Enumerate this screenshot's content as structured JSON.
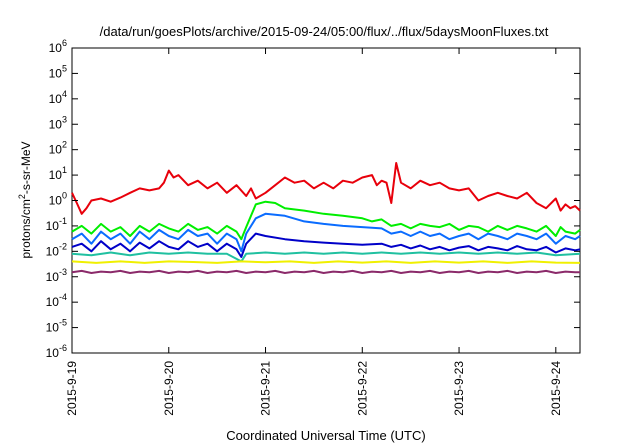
{
  "chart_data": {
    "type": "line",
    "title": "/data/run/goesPlots/archive/2015-09-24/05:00/flux/../flux/5daysMoonFluxes.txt",
    "xlabel": "Coordinated Universal Time (UTC)",
    "ylabel_parts": {
      "pre": "protons/cm",
      "sup": "2",
      "post": "-s-sr-MeV"
    },
    "x_unit": "days since 2015-09-19 00:00 UTC",
    "xlim": [
      0,
      5.25
    ],
    "ylim_log10": [
      -6,
      6
    ],
    "y_scale": "log",
    "grid": false,
    "x_ticks": [
      {
        "value": 0,
        "label": "2015-9-19"
      },
      {
        "value": 1,
        "label": "2015-9-20"
      },
      {
        "value": 2,
        "label": "2015-9-21"
      },
      {
        "value": 3,
        "label": "2015-9-22"
      },
      {
        "value": 4,
        "label": "2015-9-23"
      },
      {
        "value": 5,
        "label": "2015-9-24"
      }
    ],
    "y_ticks": [
      {
        "exp": -6,
        "label": "10",
        "sup": "-6"
      },
      {
        "exp": -5,
        "label": "10",
        "sup": "-5"
      },
      {
        "exp": -4,
        "label": "10",
        "sup": "-4"
      },
      {
        "exp": -3,
        "label": "10",
        "sup": "-3"
      },
      {
        "exp": -2,
        "label": "10",
        "sup": "-2"
      },
      {
        "exp": -1,
        "label": "10",
        "sup": "-1"
      },
      {
        "exp": 0,
        "label": "10",
        "sup": "0"
      },
      {
        "exp": 1,
        "label": "10",
        "sup": "1"
      },
      {
        "exp": 2,
        "label": "10",
        "sup": "2"
      },
      {
        "exp": 3,
        "label": "10",
        "sup": "3"
      },
      {
        "exp": 4,
        "label": "10",
        "sup": "4"
      },
      {
        "exp": 5,
        "label": "10",
        "sup": "5"
      },
      {
        "exp": 6,
        "label": "10",
        "sup": "6"
      }
    ],
    "series": [
      {
        "color": "#e8000b",
        "x": [
          0,
          0.05,
          0.1,
          0.15,
          0.2,
          0.3,
          0.4,
          0.5,
          0.6,
          0.7,
          0.8,
          0.9,
          0.95,
          1.0,
          1.05,
          1.1,
          1.2,
          1.3,
          1.4,
          1.5,
          1.6,
          1.7,
          1.8,
          1.85,
          1.9,
          2.0,
          2.1,
          2.2,
          2.3,
          2.4,
          2.5,
          2.6,
          2.7,
          2.8,
          2.9,
          3.0,
          3.1,
          3.15,
          3.2,
          3.25,
          3.3,
          3.35,
          3.4,
          3.5,
          3.6,
          3.7,
          3.8,
          3.9,
          4.0,
          4.1,
          4.2,
          4.3,
          4.4,
          4.5,
          4.6,
          4.7,
          4.8,
          4.9,
          5.0,
          5.05,
          5.1,
          5.15,
          5.2,
          5.25
        ],
        "y": [
          2,
          0.8,
          0.3,
          0.5,
          1,
          1.2,
          0.9,
          1.3,
          2,
          3,
          2.5,
          3,
          5,
          15,
          8,
          10,
          4,
          6,
          3,
          5,
          2,
          4,
          1.5,
          3,
          1.2,
          2,
          4,
          8,
          5,
          6,
          3,
          5,
          3,
          6,
          5,
          8,
          10,
          4,
          6,
          5,
          0.8,
          30,
          5,
          3,
          6,
          4,
          5,
          3,
          2.5,
          3,
          1,
          1.5,
          2,
          1.5,
          1.2,
          2,
          0.8,
          0.5,
          1.2,
          0.4,
          0.7,
          0.5,
          0.6,
          0.4
        ]
      },
      {
        "color": "#00ee00",
        "x": [
          0,
          0.1,
          0.2,
          0.3,
          0.4,
          0.5,
          0.6,
          0.7,
          0.8,
          0.9,
          1.0,
          1.1,
          1.2,
          1.3,
          1.4,
          1.5,
          1.6,
          1.7,
          1.75,
          1.8,
          1.9,
          2.0,
          2.1,
          2.2,
          2.4,
          2.6,
          2.8,
          3.0,
          3.1,
          3.2,
          3.3,
          3.4,
          3.5,
          3.6,
          3.7,
          3.8,
          3.9,
          4.0,
          4.1,
          4.2,
          4.3,
          4.4,
          4.5,
          4.6,
          4.7,
          4.8,
          4.9,
          5.0,
          5.05,
          5.1,
          5.2,
          5.25
        ],
        "y": [
          0.06,
          0.1,
          0.05,
          0.12,
          0.06,
          0.09,
          0.04,
          0.1,
          0.06,
          0.12,
          0.08,
          0.06,
          0.12,
          0.07,
          0.09,
          0.05,
          0.1,
          0.06,
          0.03,
          0.09,
          0.7,
          0.9,
          0.8,
          0.5,
          0.4,
          0.3,
          0.25,
          0.2,
          0.15,
          0.18,
          0.1,
          0.12,
          0.08,
          0.12,
          0.1,
          0.09,
          0.12,
          0.07,
          0.1,
          0.09,
          0.06,
          0.1,
          0.07,
          0.1,
          0.08,
          0.06,
          0.1,
          0.04,
          0.09,
          0.06,
          0.05,
          0.07
        ]
      },
      {
        "color": "#0a6cff",
        "x": [
          0,
          0.1,
          0.2,
          0.3,
          0.4,
          0.5,
          0.6,
          0.7,
          0.8,
          0.9,
          1.0,
          1.1,
          1.2,
          1.3,
          1.4,
          1.5,
          1.6,
          1.7,
          1.75,
          1.8,
          1.9,
          2.0,
          2.2,
          2.4,
          2.6,
          2.8,
          3.0,
          3.2,
          3.3,
          3.4,
          3.5,
          3.6,
          3.7,
          3.8,
          3.9,
          4.0,
          4.1,
          4.2,
          4.3,
          4.4,
          4.5,
          4.6,
          4.7,
          4.8,
          4.9,
          5.0,
          5.1,
          5.2,
          5.25
        ],
        "y": [
          0.03,
          0.05,
          0.02,
          0.06,
          0.03,
          0.05,
          0.02,
          0.06,
          0.03,
          0.07,
          0.04,
          0.03,
          0.07,
          0.04,
          0.05,
          0.02,
          0.05,
          0.03,
          0.01,
          0.05,
          0.2,
          0.3,
          0.25,
          0.15,
          0.12,
          0.1,
          0.09,
          0.08,
          0.05,
          0.06,
          0.04,
          0.06,
          0.04,
          0.05,
          0.03,
          0.04,
          0.05,
          0.03,
          0.05,
          0.04,
          0.03,
          0.05,
          0.04,
          0.03,
          0.05,
          0.02,
          0.04,
          0.03,
          0.04
        ]
      },
      {
        "color": "#0000c8",
        "x": [
          0,
          0.1,
          0.2,
          0.3,
          0.4,
          0.5,
          0.6,
          0.7,
          0.8,
          0.9,
          1.0,
          1.1,
          1.2,
          1.3,
          1.4,
          1.5,
          1.6,
          1.7,
          1.75,
          1.8,
          1.9,
          2.0,
          2.2,
          2.4,
          2.6,
          2.8,
          3.0,
          3.2,
          3.3,
          3.4,
          3.5,
          3.6,
          3.7,
          3.8,
          3.9,
          4.0,
          4.1,
          4.2,
          4.3,
          4.4,
          4.5,
          4.6,
          4.7,
          4.8,
          4.9,
          5.0,
          5.1,
          5.2,
          5.25
        ],
        "y": [
          0.015,
          0.02,
          0.01,
          0.025,
          0.012,
          0.02,
          0.01,
          0.022,
          0.013,
          0.025,
          0.015,
          0.012,
          0.025,
          0.015,
          0.02,
          0.01,
          0.02,
          0.012,
          0.006,
          0.02,
          0.05,
          0.04,
          0.03,
          0.025,
          0.022,
          0.02,
          0.018,
          0.02,
          0.015,
          0.018,
          0.013,
          0.017,
          0.012,
          0.015,
          0.011,
          0.014,
          0.016,
          0.011,
          0.015,
          0.013,
          0.011,
          0.016,
          0.012,
          0.011,
          0.015,
          0.009,
          0.013,
          0.011,
          0.012
        ]
      },
      {
        "color": "#20c0a0",
        "x": [
          0,
          0.2,
          0.4,
          0.6,
          0.8,
          1.0,
          1.2,
          1.4,
          1.6,
          1.75,
          1.8,
          2.0,
          2.2,
          2.4,
          2.6,
          2.8,
          3.0,
          3.2,
          3.4,
          3.6,
          3.8,
          4.0,
          4.2,
          4.4,
          4.6,
          4.8,
          5.0,
          5.25
        ],
        "y": [
          0.008,
          0.007,
          0.009,
          0.007,
          0.009,
          0.008,
          0.009,
          0.008,
          0.008,
          0.004,
          0.008,
          0.009,
          0.008,
          0.009,
          0.008,
          0.009,
          0.008,
          0.009,
          0.008,
          0.009,
          0.008,
          0.009,
          0.008,
          0.009,
          0.008,
          0.009,
          0.007,
          0.008
        ]
      },
      {
        "color": "#f0f000",
        "x": [
          0,
          0.25,
          0.5,
          0.75,
          1.0,
          1.25,
          1.5,
          1.75,
          2.0,
          2.25,
          2.5,
          2.75,
          3.0,
          3.25,
          3.5,
          3.75,
          4.0,
          4.25,
          4.5,
          4.75,
          5.0,
          5.25
        ],
        "y": [
          0.004,
          0.0035,
          0.004,
          0.0035,
          0.004,
          0.0038,
          0.0035,
          0.004,
          0.0037,
          0.004,
          0.0035,
          0.004,
          0.0036,
          0.004,
          0.0035,
          0.004,
          0.0036,
          0.004,
          0.0035,
          0.004,
          0.0036,
          0.0035
        ]
      },
      {
        "color": "#8b2a6a",
        "x": [
          0,
          0.1,
          0.2,
          0.3,
          0.4,
          0.5,
          0.6,
          0.7,
          0.8,
          0.9,
          1.0,
          1.1,
          1.2,
          1.3,
          1.4,
          1.5,
          1.6,
          1.7,
          1.8,
          1.9,
          2.0,
          2.1,
          2.2,
          2.3,
          2.4,
          2.5,
          2.6,
          2.7,
          2.8,
          2.9,
          3.0,
          3.1,
          3.2,
          3.3,
          3.4,
          3.5,
          3.6,
          3.7,
          3.8,
          3.9,
          4.0,
          4.1,
          4.2,
          4.3,
          4.4,
          4.5,
          4.6,
          4.7,
          4.8,
          4.9,
          5.0,
          5.1,
          5.2,
          5.25
        ],
        "y": [
          0.0015,
          0.0017,
          0.0014,
          0.0016,
          0.0015,
          0.0017,
          0.0014,
          0.0016,
          0.0015,
          0.0017,
          0.0014,
          0.0016,
          0.0015,
          0.0017,
          0.0014,
          0.0016,
          0.0015,
          0.0017,
          0.0014,
          0.0016,
          0.0015,
          0.0017,
          0.0014,
          0.0016,
          0.0015,
          0.0017,
          0.0014,
          0.0016,
          0.0015,
          0.0017,
          0.0014,
          0.0016,
          0.0015,
          0.0017,
          0.0014,
          0.0016,
          0.0015,
          0.0017,
          0.0014,
          0.0016,
          0.0015,
          0.0017,
          0.0014,
          0.0016,
          0.0015,
          0.0017,
          0.0014,
          0.0016,
          0.0015,
          0.0017,
          0.0014,
          0.0016,
          0.0015,
          0.0015
        ]
      }
    ]
  }
}
